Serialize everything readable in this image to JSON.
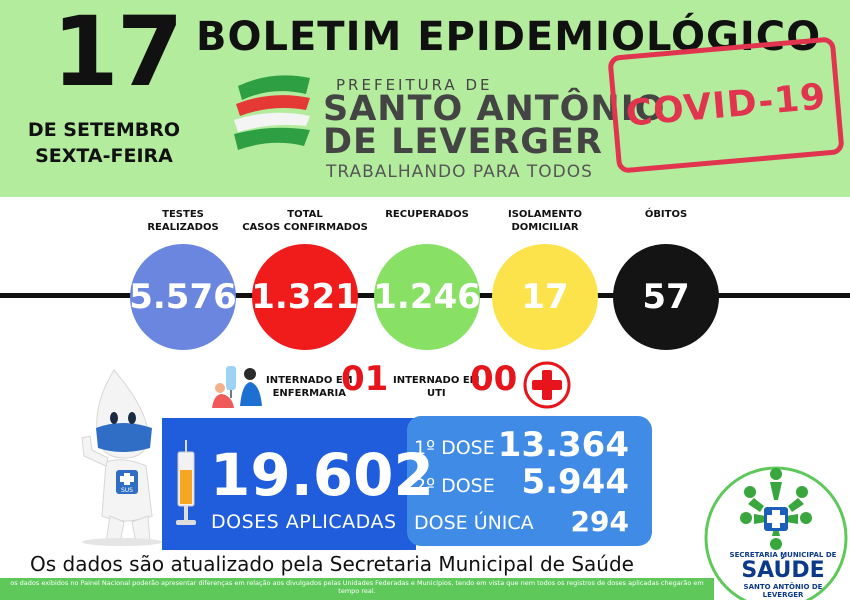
{
  "header": {
    "day": "17",
    "month_line": "DE SETEMBRO",
    "weekday_line": "SEXTA-FEIRA",
    "title": "BOLETIM EPIDEMIOLÓGICO",
    "prefeitura_small": "PREFEITURA DE",
    "prefeitura_line1": "SANTO ANTÔNIO",
    "prefeitura_line2": "DE LEVERGER",
    "slogan": "TRABALHANDO PARA TODOS",
    "stamp_text": "COVID-19"
  },
  "stats": [
    {
      "label_1": "TESTES",
      "label_2": "REALIZADOS",
      "value": "5.576",
      "color": "#6a86df"
    },
    {
      "label_1": "TOTAL",
      "label_2": "CASOS CONFIRMADOS",
      "value": "1.321",
      "color": "#f01b1b"
    },
    {
      "label_1": "RECUPERADOS",
      "label_2": "",
      "value": "1.246",
      "color": "#88e065"
    },
    {
      "label_1": "ISOLAMENTO",
      "label_2": "DOMICILIAR",
      "value": "17",
      "color": "#fde34b"
    },
    {
      "label_1": "ÓBITOS",
      "label_2": "",
      "value": "57",
      "color": "#141414"
    }
  ],
  "hospital": {
    "ward_label_1": "INTERNADO EM",
    "ward_label_2": "ENFERMARIA",
    "ward_value": "01",
    "icu_label_1": "INTERNADO EM",
    "icu_label_2": "UTI",
    "icu_value": "00"
  },
  "vaccination": {
    "total": "19.602",
    "total_label": "DOSES APLICADAS",
    "doses": [
      {
        "label": "1º DOSE",
        "value": "13.364"
      },
      {
        "label": "2º DOSE",
        "value": "5.944"
      },
      {
        "label": "DOSE ÚNICA",
        "value": "294"
      }
    ]
  },
  "footer": {
    "main": "Os dados são atualizado pela Secretaria Municipal de Saúde",
    "fine_print": "os dados exibidos no Painel Nacional poderão apresentar diferenças em relação aos divulgados pelas Unidades Federadas e Municípios, tendo em vista que nem todos os registros de doses aplicadas chegarão em tempo real."
  },
  "saude_logo": {
    "subtitle": "SECRETARIA MUNICIPAL DE",
    "title": "SAÚDE",
    "city": "SANTO ANTÔNIO DE LEVERGER"
  },
  "mascot": {
    "badge": "SUS"
  },
  "icons": [
    "nurse-icon",
    "medical-cross-icon",
    "syringe-icon",
    "flag-logo-icon",
    "sus-mascot-icon",
    "saude-logo-icon"
  ],
  "colors": {
    "header_bg": "#b4ec9e",
    "accent_red": "#e8141b",
    "vaccine_dark": "#1f5ddc",
    "vaccine_light": "#3f8be6",
    "footer_green": "#5ec95a",
    "stamp_red": "#e0344f"
  }
}
